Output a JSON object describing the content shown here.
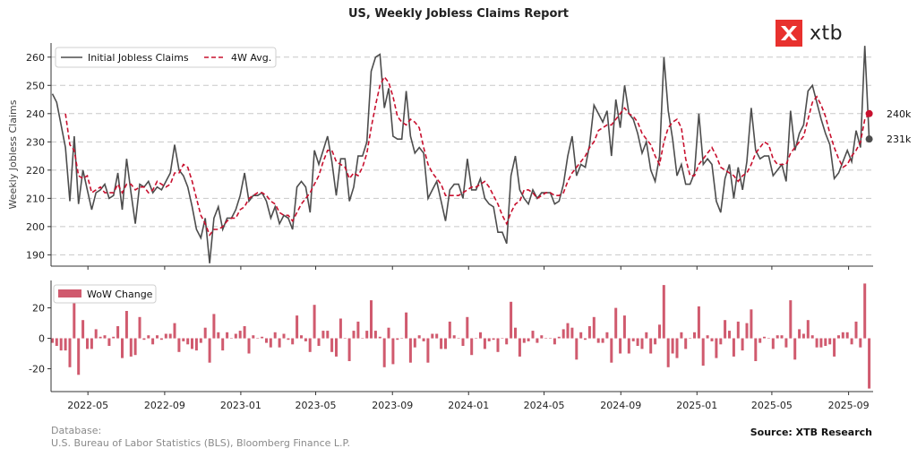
{
  "title": "US, Weekly Jobless Claims Report",
  "logo": {
    "text": "xtb",
    "color": "#e8312e"
  },
  "footer": {
    "database_label": "Database:",
    "database_sources": "U.S. Bureau of Labor Statistics (BLS), Bloomberg Finance L.P.",
    "source": "Source: XTB Research"
  },
  "colors": {
    "claims": "#4d4d4d",
    "avg": "#c8102e",
    "bars": "#d05a6e"
  },
  "chart_data": [
    {
      "type": "line",
      "title": "US, Weekly Jobless Claims Report",
      "ylabel": "Weekly Jobless Claims",
      "ylim": [
        186,
        265
      ],
      "yticks": [
        190,
        200,
        210,
        220,
        230,
        240,
        250,
        260
      ],
      "grid": "horizontal dashed",
      "legend_position": "top-left",
      "start_date": "2022-03-05",
      "frequency": "weekly",
      "series": [
        {
          "name": "Initial Jobless Claims",
          "style": "solid",
          "values": [
            247,
            244,
            236,
            228,
            209,
            232,
            208,
            220,
            213,
            206,
            212,
            213,
            215,
            210,
            211,
            219,
            206,
            224,
            212,
            201,
            215,
            214,
            216,
            212,
            214,
            213,
            216,
            219,
            229,
            220,
            218,
            214,
            207,
            199,
            196,
            203,
            187,
            203,
            207,
            199,
            203,
            203,
            206,
            211,
            219,
            209,
            211,
            211,
            212,
            209,
            203,
            207,
            201,
            204,
            203,
            199,
            214,
            216,
            214,
            205,
            227,
            222,
            227,
            232,
            223,
            211,
            224,
            224,
            209,
            214,
            225,
            225,
            230,
            255,
            260,
            261,
            242,
            249,
            232,
            231,
            231,
            248,
            232,
            226,
            228,
            226,
            210,
            213,
            216,
            209,
            202,
            213,
            215,
            215,
            210,
            224,
            213,
            213,
            217,
            210,
            208,
            207,
            198,
            198,
            194,
            218,
            225,
            213,
            210,
            208,
            213,
            210,
            212,
            212,
            212,
            208,
            209,
            215,
            225,
            232,
            218,
            222,
            221,
            229,
            243,
            240,
            237,
            241,
            225,
            245,
            235,
            250,
            240,
            238,
            233,
            226,
            230,
            220,
            216,
            225,
            260,
            241,
            231,
            218,
            222,
            215,
            215,
            219,
            240,
            222,
            224,
            222,
            209,
            205,
            217,
            222,
            210,
            221,
            213,
            223,
            242,
            227,
            224,
            225,
            225,
            218,
            220,
            222,
            216,
            241,
            227,
            233,
            236,
            248,
            250,
            244,
            238,
            233,
            229,
            217,
            219,
            223,
            227,
            223,
            234,
            228,
            264,
            231
          ],
          "latest_label": "231k"
        },
        {
          "name": "4W Avg.",
          "style": "dashed",
          "values": [
            null,
            null,
            null,
            240,
            229,
            227,
            218,
            217,
            218,
            212,
            213,
            214,
            212,
            212,
            212,
            215,
            212,
            215,
            215,
            213,
            214,
            214,
            212,
            213,
            216,
            215,
            214,
            215,
            219,
            219,
            222,
            221,
            216,
            210,
            204,
            201,
            197,
            199,
            199,
            200,
            202,
            203,
            203,
            206,
            207,
            210,
            211,
            212,
            212,
            211,
            209,
            208,
            205,
            204,
            204,
            202,
            205,
            208,
            210,
            212,
            215,
            218,
            223,
            227,
            227,
            223,
            222,
            221,
            217,
            219,
            218,
            221,
            226,
            235,
            243,
            250,
            253,
            251,
            246,
            239,
            237,
            236,
            238,
            237,
            235,
            228,
            222,
            219,
            217,
            215,
            211,
            211,
            211,
            211,
            212,
            213,
            214,
            214,
            215,
            216,
            214,
            211,
            208,
            204,
            201,
            205,
            208,
            209,
            213,
            213,
            212,
            210,
            211,
            212,
            212,
            211,
            211,
            212,
            216,
            219,
            221,
            223,
            225,
            228,
            230,
            234,
            235,
            236,
            236,
            238,
            240,
            242,
            240,
            239,
            237,
            233,
            231,
            229,
            225,
            222,
            230,
            235,
            237,
            238,
            235,
            224,
            218,
            218,
            222,
            224,
            226,
            228,
            225,
            221,
            220,
            219,
            218,
            216,
            218,
            219,
            222,
            226,
            228,
            230,
            229,
            224,
            222,
            222,
            222,
            226,
            228,
            230,
            232,
            238,
            244,
            246,
            243,
            239,
            233,
            228,
            224,
            221,
            222,
            225,
            227,
            230,
            238,
            240
          ],
          "latest_label": "240k"
        }
      ]
    },
    {
      "type": "bar",
      "legend": "WoW Change",
      "legend_position": "top-left",
      "ylim": [
        -35,
        38
      ],
      "yticks": [
        -20,
        0,
        20
      ],
      "start_date": "2022-03-05",
      "frequency": "weekly",
      "x_tick_labels": [
        "2022-05",
        "2022-09",
        "2023-01",
        "2023-05",
        "2023-09",
        "2024-01",
        "2024-05",
        "2024-09",
        "2025-01",
        "2025-05",
        "2025-09"
      ],
      "x_tick_dates": [
        "2022-05-01",
        "2022-09-01",
        "2023-01-01",
        "2023-05-01",
        "2023-09-01",
        "2024-01-01",
        "2024-05-01",
        "2024-09-01",
        "2025-01-01",
        "2025-05-01",
        "2025-09-01"
      ],
      "values": [
        -3,
        -5,
        -8,
        -8,
        -19,
        23,
        -24,
        12,
        -7,
        -7,
        6,
        1,
        2,
        -5,
        1,
        8,
        -13,
        18,
        -12,
        -11,
        14,
        -1,
        2,
        -4,
        2,
        -1,
        3,
        3,
        10,
        -9,
        -2,
        -4,
        -7,
        -8,
        -3,
        7,
        -16,
        16,
        4,
        -8,
        4,
        0,
        3,
        5,
        8,
        -10,
        2,
        0,
        1,
        -3,
        -6,
        4,
        -6,
        3,
        -1,
        -4,
        15,
        2,
        -2,
        -9,
        22,
        -5,
        5,
        5,
        -9,
        -12,
        13,
        0,
        -15,
        5,
        11,
        0,
        5,
        25,
        5,
        1,
        -19,
        7,
        -17,
        -1,
        0,
        17,
        -16,
        -6,
        2,
        -2,
        -16,
        3,
        3,
        -7,
        -7,
        11,
        2,
        0,
        -5,
        14,
        -11,
        0,
        4,
        -7,
        -2,
        -1,
        -9,
        0,
        -4,
        24,
        7,
        -12,
        -3,
        -2,
        5,
        -3,
        2,
        0,
        0,
        -4,
        1,
        6,
        10,
        7,
        -14,
        4,
        -1,
        8,
        14,
        -3,
        -3,
        4,
        -16,
        20,
        -10,
        15,
        -10,
        -2,
        -5,
        -7,
        4,
        -10,
        -4,
        9,
        35,
        -19,
        -10,
        -13,
        4,
        -7,
        0,
        4,
        21,
        -18,
        2,
        -2,
        -13,
        -4,
        12,
        5,
        -12,
        11,
        -8,
        10,
        19,
        -15,
        -3,
        1,
        0,
        -7,
        2,
        2,
        -6,
        25,
        -14,
        6,
        3,
        12,
        2,
        -6,
        -6,
        -5,
        -4,
        -12,
        2,
        4,
        4,
        -4,
        11,
        -6,
        36,
        -33
      ]
    }
  ]
}
